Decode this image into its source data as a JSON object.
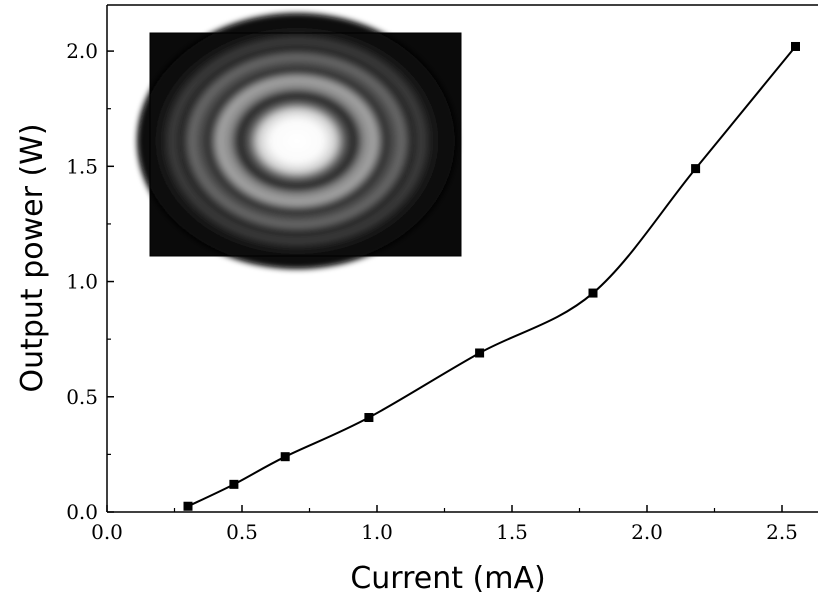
{
  "chart_data": {
    "type": "scatter",
    "title": "",
    "xlabel": "Current (mA)",
    "ylabel": "Output power (W)",
    "xlim": [
      0.0,
      2.7
    ],
    "ylim": [
      0.0,
      2.2
    ],
    "x_ticks": [
      "0.0",
      "0.5",
      "1.0",
      "1.5",
      "2.0",
      "2.5"
    ],
    "y_ticks": [
      "0.0",
      "0.5",
      "1.0",
      "1.5",
      "2.0"
    ],
    "grid": false,
    "legend": "none",
    "series": [
      {
        "x": [
          0.3,
          0.47,
          0.66,
          0.97,
          1.38,
          1.8,
          2.18,
          2.55
        ],
        "y": [
          0.025,
          0.12,
          0.24,
          0.41,
          0.69,
          0.95,
          1.49,
          2.02
        ],
        "marker": "square",
        "color": "#000000"
      }
    ],
    "fit_curve": {
      "style": "smooth solid line",
      "color": "#000000"
    },
    "inset": {
      "content": "beam-profile-image",
      "placement": "top-left"
    }
  }
}
